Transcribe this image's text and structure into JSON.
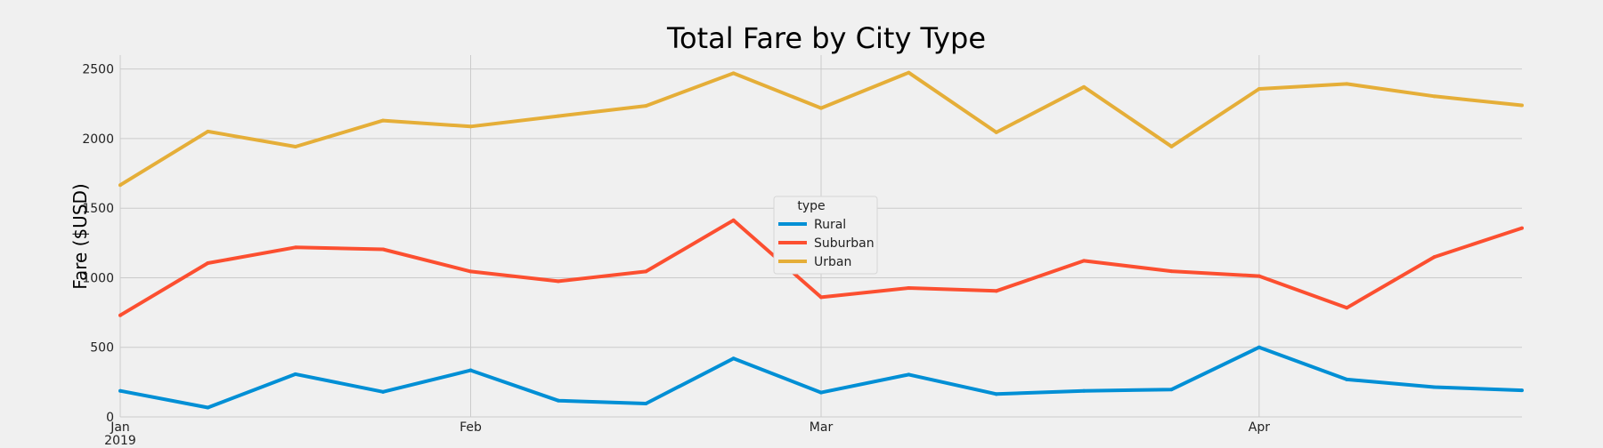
{
  "chart_data": {
    "type": "line",
    "title": "Total Fare by City Type",
    "xlabel": "",
    "ylabel": "Fare ($USD)",
    "x": [
      "2019-01-06",
      "2019-01-13",
      "2019-01-20",
      "2019-01-27",
      "2019-02-03",
      "2019-02-10",
      "2019-02-17",
      "2019-02-24",
      "2019-03-03",
      "2019-03-10",
      "2019-03-17",
      "2019-03-24",
      "2019-03-31",
      "2019-04-07",
      "2019-04-14",
      "2019-04-21",
      "2019-04-28"
    ],
    "x_ticks": [
      {
        "label": "Jan",
        "sublabel": "2019",
        "date": "2019-01-06"
      },
      {
        "label": "Feb",
        "sublabel": "",
        "date": "2019-02-03"
      },
      {
        "label": "Mar",
        "sublabel": "",
        "date": "2019-03-03"
      },
      {
        "label": "Apr",
        "sublabel": "",
        "date": "2019-04-07"
      }
    ],
    "ylim": [
      0,
      2600
    ],
    "y_ticks": [
      0,
      500,
      1000,
      1500,
      2000,
      2500
    ],
    "grid": true,
    "legend": {
      "title": "type",
      "placement": "center"
    },
    "series": [
      {
        "name": "Rural",
        "color": "#008fd5",
        "values": [
          187,
          67,
          307,
          180,
          335,
          117,
          96,
          420,
          175,
          304,
          164,
          187,
          197,
          500,
          269,
          214,
          191
        ]
      },
      {
        "name": "Suburban",
        "color": "#fc4f30",
        "values": [
          730,
          1105,
          1218,
          1204,
          1045,
          975,
          1045,
          1413,
          860,
          926,
          905,
          1122,
          1047,
          1012,
          784,
          1149,
          1357
        ]
      },
      {
        "name": "Urban",
        "color": "#e5ae38",
        "values": [
          1666,
          2051,
          1942,
          2130,
          2087,
          2162,
          2235,
          2470,
          2219,
          2474,
          2045,
          2371,
          1943,
          2357,
          2393,
          2304,
          2239
        ]
      }
    ]
  }
}
